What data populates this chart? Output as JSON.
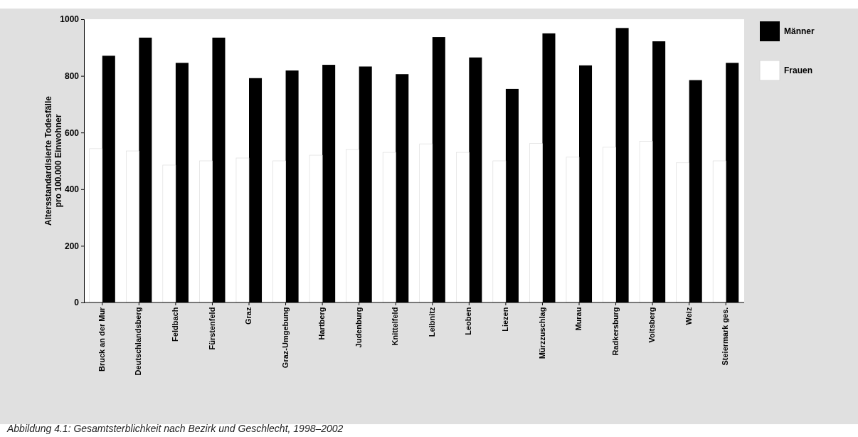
{
  "chart_data": {
    "type": "bar",
    "ylabel": "Altersstandardisierte Todesfälle pro 100.000 Einwohner",
    "categories": [
      "Bruck an der Mur",
      "Deutschlandsberg",
      "Feldbach",
      "Fürstenfeld",
      "Graz",
      "Graz-Umgebung",
      "Hartberg",
      "Judenburg",
      "Knittelfeld",
      "Leibnitz",
      "Leoben",
      "Liezen",
      "Mürzzuschlag",
      "Murau",
      "Radkersburg",
      "Voitsberg",
      "Weiz",
      "Steiermark ges."
    ],
    "series": [
      {
        "name": "Männer",
        "color": "#000000",
        "values": [
          871,
          935,
          846,
          935,
          792,
          819,
          839,
          833,
          806,
          937,
          865,
          754,
          950,
          837,
          969,
          922,
          785,
          846
        ]
      },
      {
        "name": "Frauen",
        "color": "#ffffff",
        "values": [
          543,
          535,
          485,
          500,
          510,
          500,
          520,
          540,
          530,
          560,
          530,
          500,
          561,
          513,
          548,
          569,
          493,
          500
        ]
      }
    ],
    "ylim": [
      0,
      1000
    ],
    "yticks": [
      0,
      200,
      400,
      600,
      800,
      1000
    ],
    "grid": false,
    "legend": "top right",
    "annotations": [
      "Abbildung 4.1: Gesamtsterblichkeit nach Bezirk und Geschlecht, 1998–2002"
    ]
  }
}
